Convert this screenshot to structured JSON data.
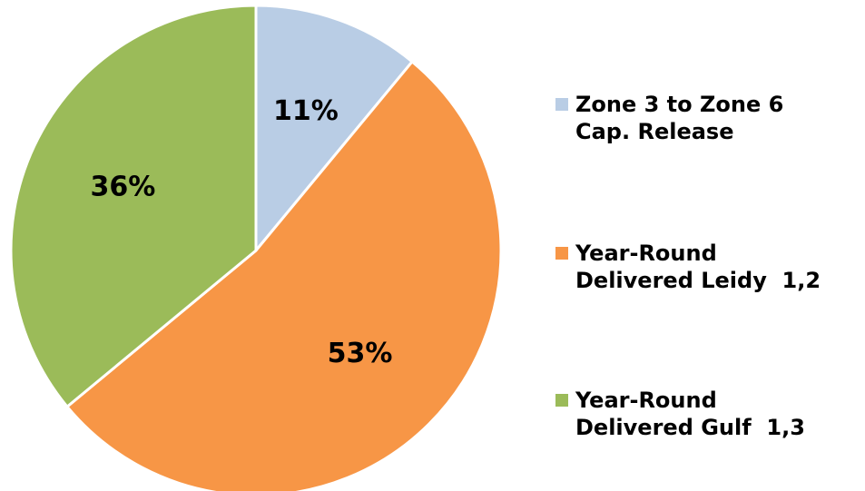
{
  "chart_data": {
    "type": "pie",
    "categories": [
      "Zone 3 to Zone 6\nCap. Release",
      "Year-Round\nDelivered Leidy  1,2",
      "Year-Round\nDelivered Gulf  1,3"
    ],
    "values": [
      11,
      53,
      36
    ],
    "value_labels": [
      "11%",
      "53%",
      "36%"
    ],
    "colors": [
      "#b9cde5",
      "#f79646",
      "#9bbb59"
    ],
    "legend": "right"
  }
}
